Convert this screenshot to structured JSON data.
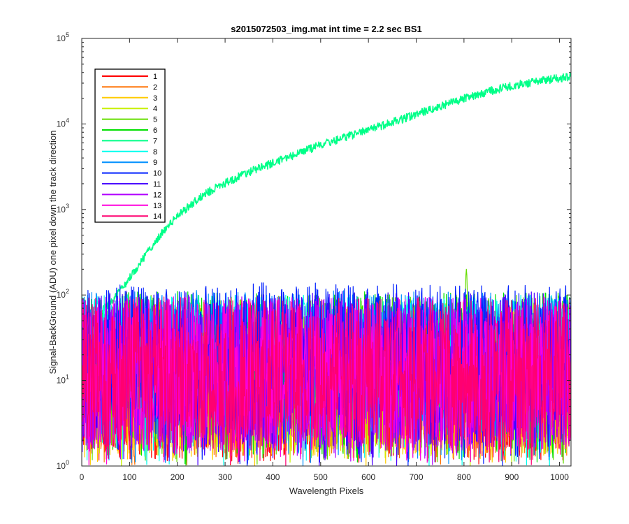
{
  "chart_data": {
    "type": "line",
    "title": "s2015072503_img.mat int time = 2.2 sec   BS1",
    "xlabel": "Wavelength Pixels",
    "ylabel": "Signal-BackGround (ADU) one pixel down the track direction",
    "xlim": [
      0,
      1024
    ],
    "ylim": [
      1,
      100000
    ],
    "yscale": "log",
    "x_ticks": [
      "0",
      "100",
      "200",
      "300",
      "400",
      "500",
      "600",
      "700",
      "800",
      "900",
      "1000"
    ],
    "x_tick_values": [
      0,
      100,
      200,
      300,
      400,
      500,
      600,
      700,
      800,
      900,
      1000
    ],
    "y_ticks": [
      {
        "base": "10",
        "exp": "0"
      },
      {
        "base": "10",
        "exp": "1"
      },
      {
        "base": "10",
        "exp": "2"
      },
      {
        "base": "10",
        "exp": "3"
      },
      {
        "base": "10",
        "exp": "4"
      },
      {
        "base": "10",
        "exp": "5"
      }
    ],
    "y_tick_values": [
      1,
      10,
      100,
      1000,
      10000,
      100000
    ],
    "grid": false,
    "legend_position": "top-left",
    "series": [
      {
        "name": "1",
        "color": "#ff0000",
        "level": 9,
        "spread": 0.9
      },
      {
        "name": "2",
        "color": "#ff7000",
        "level": 10,
        "spread": 0.9
      },
      {
        "name": "3",
        "color": "#ffcc00",
        "level": 10,
        "spread": 0.9
      },
      {
        "name": "4",
        "color": "#c8f000",
        "level": 11,
        "spread": 0.9
      },
      {
        "name": "5",
        "color": "#66dd00",
        "level": 16,
        "spread": 0.8,
        "peak": {
          "x": 805,
          "y": 200
        }
      },
      {
        "name": "6",
        "color": "#00e000",
        "level": 22,
        "spread": 0.7
      },
      {
        "name": "7",
        "color": "#00ff88",
        "signal": [
          [
            0,
            55
          ],
          [
            40,
            65
          ],
          [
            60,
            80
          ],
          [
            80,
            110
          ],
          [
            100,
            160
          ],
          [
            120,
            230
          ],
          [
            140,
            330
          ],
          [
            160,
            470
          ],
          [
            180,
            640
          ],
          [
            200,
            830
          ],
          [
            220,
            1050
          ],
          [
            240,
            1300
          ],
          [
            260,
            1550
          ],
          [
            280,
            1800
          ],
          [
            300,
            2050
          ],
          [
            330,
            2450
          ],
          [
            360,
            2900
          ],
          [
            400,
            3500
          ],
          [
            450,
            4500
          ],
          [
            500,
            5700
          ],
          [
            550,
            7000
          ],
          [
            600,
            8500
          ],
          [
            650,
            10500
          ],
          [
            700,
            13000
          ],
          [
            750,
            16000
          ],
          [
            800,
            20000
          ],
          [
            850,
            24000
          ],
          [
            900,
            28000
          ],
          [
            950,
            31500
          ],
          [
            1024,
            36000
          ]
        ]
      },
      {
        "name": "8",
        "color": "#00ffee",
        "level": 45,
        "spread": 0.35
      },
      {
        "name": "9",
        "color": "#0090ff",
        "level": 18,
        "spread": 0.8
      },
      {
        "name": "10",
        "color": "#0020ff",
        "level": 22,
        "spread": 0.8
      },
      {
        "name": "11",
        "color": "#4a00ff",
        "level": 14,
        "spread": 0.9
      },
      {
        "name": "12",
        "color": "#b000ff",
        "level": 12,
        "spread": 0.9
      },
      {
        "name": "13",
        "color": "#ff00dd",
        "level": 12,
        "spread": 0.9
      },
      {
        "name": "14",
        "color": "#ff0070",
        "level": 12,
        "spread": 0.9
      }
    ]
  }
}
